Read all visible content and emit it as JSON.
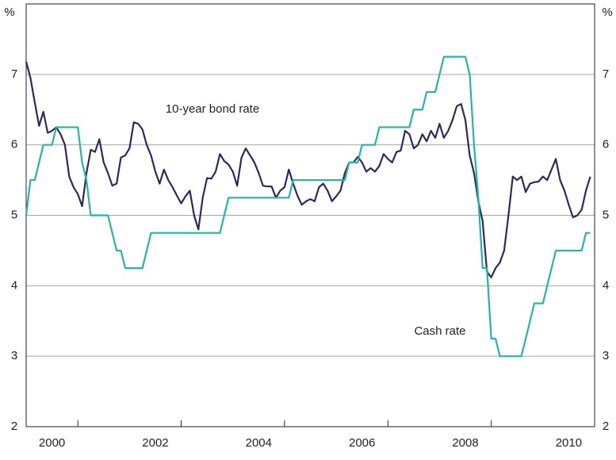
{
  "chart_data": {
    "type": "line",
    "y_label": "%",
    "y2_label": "%",
    "xlim": [
      2000,
      2011
    ],
    "xticks": [
      {
        "value": 2000.5,
        "label": "2000"
      },
      {
        "value": 2002.5,
        "label": "2002"
      },
      {
        "value": 2004.5,
        "label": "2004"
      },
      {
        "value": 2006.5,
        "label": "2006"
      },
      {
        "value": 2008.5,
        "label": "2008"
      },
      {
        "value": 2010.5,
        "label": "2010"
      }
    ],
    "minor_xticks": [
      2001,
      2003,
      2005,
      2007,
      2009
    ],
    "ylim": [
      2,
      8
    ],
    "yticks": [
      2,
      3,
      4,
      5,
      6,
      7
    ],
    "y2lim": [
      2,
      8
    ],
    "y2ticks": [
      2,
      3,
      4,
      5,
      6,
      7
    ],
    "grid": true,
    "x": [
      2000,
      2000.083,
      2000.167,
      2000.25,
      2000.333,
      2000.417,
      2000.5,
      2000.583,
      2000.667,
      2000.75,
      2000.833,
      2000.917,
      2001,
      2001.083,
      2001.167,
      2001.25,
      2001.333,
      2001.417,
      2001.5,
      2001.583,
      2001.667,
      2001.75,
      2001.833,
      2001.917,
      2002,
      2002.083,
      2002.167,
      2002.25,
      2002.333,
      2002.417,
      2002.5,
      2002.583,
      2002.667,
      2002.75,
      2002.833,
      2002.917,
      2003,
      2003.083,
      2003.167,
      2003.25,
      2003.333,
      2003.417,
      2003.5,
      2003.583,
      2003.667,
      2003.75,
      2003.833,
      2003.917,
      2004,
      2004.083,
      2004.167,
      2004.25,
      2004.333,
      2004.417,
      2004.5,
      2004.583,
      2004.667,
      2004.75,
      2004.833,
      2004.917,
      2005,
      2005.083,
      2005.167,
      2005.25,
      2005.333,
      2005.417,
      2005.5,
      2005.583,
      2005.667,
      2005.75,
      2005.833,
      2005.917,
      2006,
      2006.083,
      2006.167,
      2006.25,
      2006.333,
      2006.417,
      2006.5,
      2006.583,
      2006.667,
      2006.75,
      2006.833,
      2006.917,
      2007,
      2007.083,
      2007.167,
      2007.25,
      2007.333,
      2007.417,
      2007.5,
      2007.583,
      2007.667,
      2007.75,
      2007.833,
      2007.917,
      2008,
      2008.083,
      2008.167,
      2008.25,
      2008.333,
      2008.417,
      2008.5,
      2008.583,
      2008.667,
      2008.75,
      2008.833,
      2008.917,
      2009,
      2009.083,
      2009.167,
      2009.25,
      2009.333,
      2009.417,
      2009.5,
      2009.583,
      2009.667,
      2009.75,
      2009.833,
      2009.917,
      2010,
      2010.083,
      2010.167,
      2010.25,
      2010.333,
      2010.417,
      2010.5,
      2010.583,
      2010.667,
      2010.75,
      2010.833,
      2010.917
    ],
    "series": [
      {
        "name": "10-year bond rate",
        "color": "#2b2a5c",
        "values": [
          7.18,
          6.95,
          6.6,
          6.27,
          6.47,
          6.17,
          6.2,
          6.25,
          6.15,
          6.0,
          5.55,
          5.4,
          5.3,
          5.13,
          5.6,
          5.93,
          5.9,
          6.08,
          5.75,
          5.6,
          5.42,
          5.45,
          5.82,
          5.85,
          5.95,
          6.32,
          6.3,
          6.22,
          6.0,
          5.85,
          5.62,
          5.45,
          5.65,
          5.5,
          5.4,
          5.28,
          5.17,
          5.27,
          5.35,
          5.0,
          4.8,
          5.25,
          5.53,
          5.52,
          5.62,
          5.87,
          5.77,
          5.72,
          5.62,
          5.42,
          5.82,
          5.95,
          5.85,
          5.75,
          5.6,
          5.42,
          5.41,
          5.41,
          5.25,
          5.35,
          5.4,
          5.65,
          5.45,
          5.28,
          5.15,
          5.2,
          5.23,
          5.2,
          5.4,
          5.45,
          5.35,
          5.2,
          5.27,
          5.35,
          5.6,
          5.75,
          5.75,
          5.83,
          5.75,
          5.62,
          5.67,
          5.62,
          5.7,
          5.87,
          5.8,
          5.75,
          5.9,
          5.92,
          6.2,
          6.15,
          5.95,
          6.0,
          6.15,
          6.05,
          6.2,
          6.1,
          6.3,
          6.1,
          6.2,
          6.35,
          6.55,
          6.58,
          6.35,
          5.85,
          5.6,
          5.2,
          4.92,
          4.2,
          4.12,
          4.25,
          4.33,
          4.5,
          5.0,
          5.55,
          5.5,
          5.55,
          5.33,
          5.45,
          5.47,
          5.48,
          5.55,
          5.5,
          5.65,
          5.8,
          5.5,
          5.35,
          5.15,
          4.97,
          5.0,
          5.08,
          5.35,
          5.55
        ]
      },
      {
        "name": "Cash rate",
        "color": "#22b5a8",
        "values": [
          5.0,
          5.5,
          5.5,
          5.75,
          6.0,
          6.0,
          6.0,
          6.25,
          6.25,
          6.25,
          6.25,
          6.25,
          6.25,
          5.75,
          5.5,
          5.0,
          5.0,
          5.0,
          5.0,
          5.0,
          4.75,
          4.5,
          4.5,
          4.25,
          4.25,
          4.25,
          4.25,
          4.25,
          4.5,
          4.75,
          4.75,
          4.75,
          4.75,
          4.75,
          4.75,
          4.75,
          4.75,
          4.75,
          4.75,
          4.75,
          4.75,
          4.75,
          4.75,
          4.75,
          4.75,
          4.75,
          5.0,
          5.25,
          5.25,
          5.25,
          5.25,
          5.25,
          5.25,
          5.25,
          5.25,
          5.25,
          5.25,
          5.25,
          5.25,
          5.25,
          5.25,
          5.25,
          5.5,
          5.5,
          5.5,
          5.5,
          5.5,
          5.5,
          5.5,
          5.5,
          5.5,
          5.5,
          5.5,
          5.5,
          5.5,
          5.75,
          5.75,
          5.75,
          6.0,
          6.0,
          6.0,
          6.0,
          6.25,
          6.25,
          6.25,
          6.25,
          6.25,
          6.25,
          6.25,
          6.25,
          6.5,
          6.5,
          6.5,
          6.75,
          6.75,
          6.75,
          7.0,
          7.25,
          7.25,
          7.25,
          7.25,
          7.25,
          7.25,
          7.0,
          6.0,
          5.25,
          4.25,
          4.25,
          3.25,
          3.25,
          3.0,
          3.0,
          3.0,
          3.0,
          3.0,
          3.0,
          3.25,
          3.5,
          3.75,
          3.75,
          3.75,
          4.0,
          4.25,
          4.5,
          4.5,
          4.5,
          4.5,
          4.5,
          4.5,
          4.5,
          4.75,
          4.75
        ]
      }
    ]
  }
}
